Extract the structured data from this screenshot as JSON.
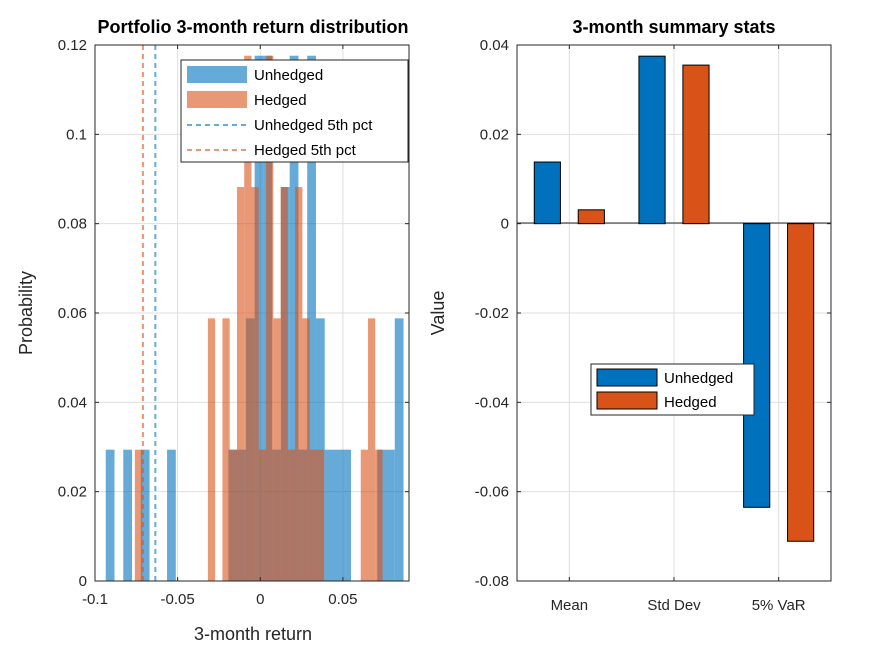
{
  "chart_data": [
    {
      "type": "histogram",
      "title": "Portfolio 3-month return distribution",
      "xlabel": "3-month return",
      "ylabel": "Probability",
      "xlim": [
        -0.1,
        0.09
      ],
      "ylim": [
        0,
        0.12
      ],
      "xticks": [
        -0.1,
        -0.05,
        0,
        0.05
      ],
      "xtick_labels": [
        "-0.1",
        "-0.05",
        "0",
        "0.05"
      ],
      "yticks": [
        0,
        0.02,
        0.04,
        0.06,
        0.08,
        0.1,
        0.12
      ],
      "ytick_labels": [
        "0",
        "0.02",
        "0.04",
        "0.06",
        "0.08",
        "0.1",
        "0.12"
      ],
      "grid": true,
      "legend_location": "top-right",
      "series": [
        {
          "name": "Unhedged",
          "color": "#0072BD",
          "bins": [
            {
              "x0": -0.0935,
              "x1": -0.0882,
              "value": 0.0294
            },
            {
              "x0": -0.0829,
              "x1": -0.0776,
              "value": 0.0294
            },
            {
              "x0": -0.0723,
              "x1": -0.067,
              "value": 0.0294
            },
            {
              "x0": -0.0564,
              "x1": -0.0511,
              "value": 0.0294
            },
            {
              "x0": -0.0193,
              "x1": -0.014,
              "value": 0.0294
            },
            {
              "x0": -0.014,
              "x1": -0.0087,
              "value": 0.0294
            },
            {
              "x0": -0.0087,
              "x1": -0.0034,
              "value": 0.0588
            },
            {
              "x0": -0.0034,
              "x1": 0.0019,
              "value": 0.1176
            },
            {
              "x0": 0.0019,
              "x1": 0.0072,
              "value": 0.1176
            },
            {
              "x0": 0.0072,
              "x1": 0.0125,
              "value": 0.0294
            },
            {
              "x0": 0.0125,
              "x1": 0.0178,
              "value": 0.0882
            },
            {
              "x0": 0.0178,
              "x1": 0.0231,
              "value": 0.1176
            },
            {
              "x0": 0.0231,
              "x1": 0.0284,
              "value": 0.0294
            },
            {
              "x0": 0.0284,
              "x1": 0.0337,
              "value": 0.1176
            },
            {
              "x0": 0.0337,
              "x1": 0.039,
              "value": 0.0588
            },
            {
              "x0": 0.039,
              "x1": 0.0443,
              "value": 0.0294
            },
            {
              "x0": 0.0443,
              "x1": 0.0496,
              "value": 0.0294
            },
            {
              "x0": 0.0496,
              "x1": 0.0549,
              "value": 0.0294
            },
            {
              "x0": 0.0708,
              "x1": 0.0761,
              "value": 0.0294
            },
            {
              "x0": 0.0761,
              "x1": 0.0814,
              "value": 0.0294
            },
            {
              "x0": 0.0814,
              "x1": 0.0867,
              "value": 0.0588
            }
          ]
        },
        {
          "name": "Hedged",
          "color": "#D95319",
          "bins": [
            {
              "x0": -0.0759,
              "x1": -0.0715,
              "value": 0.0294
            },
            {
              "x0": -0.0317,
              "x1": -0.0273,
              "value": 0.0588
            },
            {
              "x0": -0.0229,
              "x1": -0.0185,
              "value": 0.0588
            },
            {
              "x0": -0.0185,
              "x1": -0.0141,
              "value": 0.0294
            },
            {
              "x0": -0.0141,
              "x1": -0.0097,
              "value": 0.0882
            },
            {
              "x0": -0.0097,
              "x1": -0.0053,
              "value": 0.1176
            },
            {
              "x0": -0.0053,
              "x1": -0.0009,
              "value": 0.0882
            },
            {
              "x0": -0.0009,
              "x1": 0.0035,
              "value": 0.0294
            },
            {
              "x0": 0.0035,
              "x1": 0.0079,
              "value": 0.1176
            },
            {
              "x0": 0.0079,
              "x1": 0.0123,
              "value": 0.0588
            },
            {
              "x0": 0.0123,
              "x1": 0.0167,
              "value": 0.0882
            },
            {
              "x0": 0.0167,
              "x1": 0.0211,
              "value": 0.0294
            },
            {
              "x0": 0.0211,
              "x1": 0.0255,
              "value": 0.0882
            },
            {
              "x0": 0.0255,
              "x1": 0.0299,
              "value": 0.0588
            },
            {
              "x0": 0.0299,
              "x1": 0.0343,
              "value": 0.0294
            },
            {
              "x0": 0.0343,
              "x1": 0.0387,
              "value": 0.0294
            },
            {
              "x0": 0.0608,
              "x1": 0.0652,
              "value": 0.0294
            },
            {
              "x0": 0.0652,
              "x1": 0.0696,
              "value": 0.0588
            },
            {
              "x0": 0.0696,
              "x1": 0.074,
              "value": 0.0294
            }
          ]
        }
      ],
      "reference_lines": [
        {
          "name": "Unhedged 5th pct",
          "x": -0.0635,
          "color": "#0072BD",
          "style": "dashed"
        },
        {
          "name": "Hedged 5th pct",
          "x": -0.071,
          "color": "#D95319",
          "style": "dashed"
        }
      ]
    },
    {
      "type": "bar",
      "title": "3-month summary stats",
      "xlabel": "",
      "ylabel": "Value",
      "categories": [
        "Mean",
        "Std Dev",
        "5% VaR"
      ],
      "ylim": [
        -0.08,
        0.04
      ],
      "yticks": [
        -0.08,
        -0.06,
        -0.04,
        -0.02,
        0,
        0.02,
        0.04
      ],
      "ytick_labels": [
        "-0.08",
        "-0.06",
        "-0.04",
        "-0.02",
        "0",
        "0.02",
        "0.04"
      ],
      "grid": true,
      "legend_location": "center",
      "series": [
        {
          "name": "Unhedged",
          "color": "#0072BD",
          "values": [
            0.0138,
            0.0375,
            -0.0635
          ]
        },
        {
          "name": "Hedged",
          "color": "#D95319",
          "values": [
            0.0031,
            0.0355,
            -0.0711
          ]
        }
      ]
    }
  ]
}
